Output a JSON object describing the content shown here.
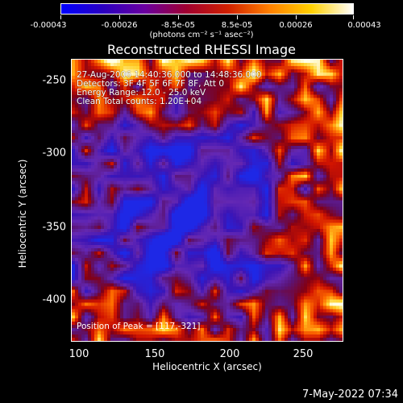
{
  "colorbar": {
    "tick_labels": [
      "-0.00043",
      "-0.00026",
      "-8.5e-05",
      "8.5e-05",
      "0.00026",
      "0.00043"
    ],
    "units": "(photons cm⁻² s⁻¹ asec⁻²)",
    "colors": [
      "#0000ff",
      "#2a00c0",
      "#6a00a0",
      "#a00030",
      "#d02000",
      "#ff8000",
      "#ffd000",
      "#ffffff"
    ]
  },
  "title": "Reconstructed RHESSI Image",
  "info": {
    "time_range": "27-Aug-2006 14:40:36.000 to 14:48:36.000",
    "detectors": "Detectors: 3F 4F 5F 6F 7F 8F, Att 0",
    "energy": "Energy Range: 12.0 - 25.0 keV",
    "method": "Clean    Total counts: 1.20E+04",
    "peak": "Position of Peak = [117,-321]"
  },
  "axes": {
    "xlabel": "Heliocentric X (arcsec)",
    "ylabel": "Heliocentric Y (arcsec)",
    "xticks": [
      "100",
      "150",
      "200",
      "250"
    ],
    "yticks": [
      "-250",
      "-300",
      "-350",
      "-400"
    ]
  },
  "timestamp": "7-May-2022 07:34"
}
